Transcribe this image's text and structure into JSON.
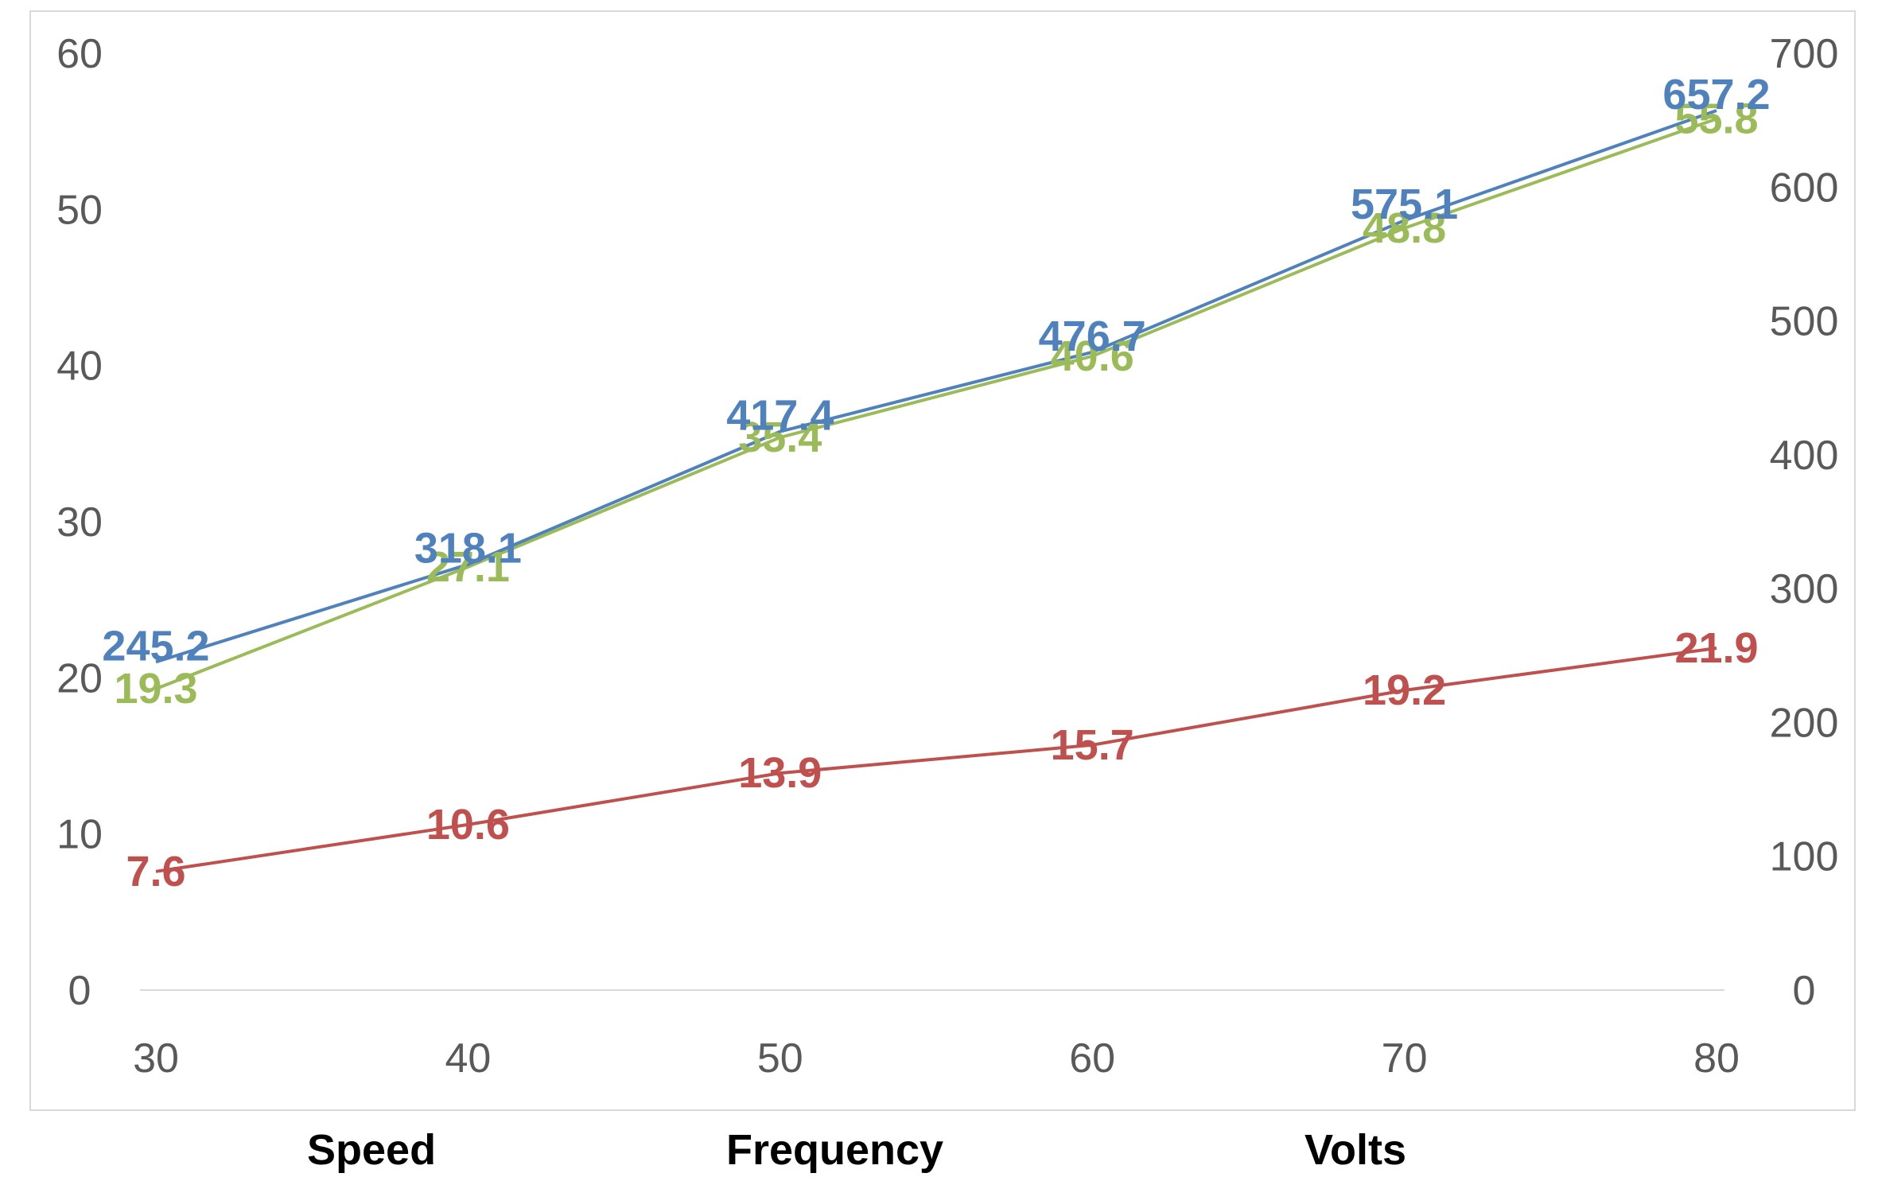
{
  "chart_data": {
    "type": "line",
    "x": [
      30,
      40,
      50,
      60,
      70,
      80
    ],
    "series": [
      {
        "name": "Speed",
        "axis": "left",
        "color": "#c0504d",
        "values": [
          7.6,
          10.6,
          13.9,
          15.7,
          19.2,
          21.9
        ]
      },
      {
        "name": "Frequency",
        "axis": "left",
        "color": "#9bbb59",
        "values": [
          19.3,
          27.1,
          35.4,
          40.6,
          48.8,
          55.8
        ]
      },
      {
        "name": "Volts",
        "axis": "right",
        "color": "#4f81bd",
        "values": [
          245.2,
          318.1,
          417.4,
          476.7,
          575.1,
          657.2
        ]
      }
    ],
    "x_ticks": [
      "30",
      "40",
      "50",
      "60",
      "70",
      "80"
    ],
    "y_left_ticks": [
      "0",
      "10",
      "20",
      "30",
      "40",
      "50",
      "60"
    ],
    "y_right_ticks": [
      "0",
      "100",
      "200",
      "300",
      "400",
      "500",
      "600",
      "700"
    ],
    "ylim_left": [
      0,
      60
    ],
    "ylim_right": [
      0,
      700
    ],
    "xlim": [
      30,
      80
    ],
    "grid": false,
    "legend_position": "bottom",
    "title": "",
    "xlabel": "",
    "ylabel": ""
  }
}
